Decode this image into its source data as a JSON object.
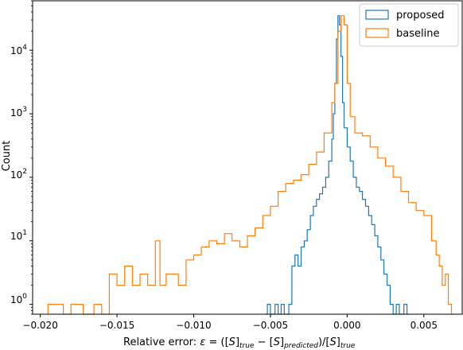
{
  "chart_data": {
    "type": "histogram",
    "xlabel": "Relative error: ε = ([S]true − [S]predicted)/[S]true",
    "xlabel_parts": {
      "prefix": "Relative error: ",
      "eps": "ε",
      "eq": " = ([",
      "S1": "S",
      "close1": "]",
      "sub_true": "true",
      "minus": " − [",
      "S2": "S",
      "close2": "]",
      "sub_pred": "predicted",
      "div": ")/[",
      "S3": "S",
      "close3": "]",
      "sub_true2": "true"
    },
    "ylabel": "Count",
    "yscale": "log",
    "xlim": [
      -0.0205,
      0.0075
    ],
    "ylim": [
      0.7,
      60000
    ],
    "x_ticks": [
      -0.02,
      -0.015,
      -0.01,
      -0.005,
      0.0,
      0.005
    ],
    "x_tick_labels": [
      "−0.020",
      "−0.015",
      "−0.010",
      "−0.005",
      "0.000",
      "0.005"
    ],
    "y_ticks": [
      1,
      10,
      100,
      1000,
      10000
    ],
    "y_tick_labels": {
      "t0": {
        "base": "10",
        "exp": "0"
      },
      "t1": {
        "base": "10",
        "exp": "1"
      },
      "t2": {
        "base": "10",
        "exp": "2"
      },
      "t3": {
        "base": "10",
        "exp": "3"
      },
      "t4": {
        "base": "10",
        "exp": "4"
      }
    },
    "legend_position": "top-right",
    "series": [
      {
        "name": "proposed",
        "color": "#1f77b4",
        "style": "step",
        "points": [
          [
            -0.0053,
            0.7
          ],
          [
            -0.0052,
            1
          ],
          [
            -0.005,
            0.7
          ],
          [
            -0.0047,
            1
          ],
          [
            -0.0045,
            0.7
          ],
          [
            -0.0043,
            1
          ],
          [
            -0.0041,
            0.7
          ],
          [
            -0.0038,
            1
          ],
          [
            -0.0036,
            4
          ],
          [
            -0.0034,
            6
          ],
          [
            -0.0032,
            4
          ],
          [
            -0.003,
            8
          ],
          [
            -0.0028,
            10
          ],
          [
            -0.0026,
            15
          ],
          [
            -0.0024,
            25
          ],
          [
            -0.0022,
            35
          ],
          [
            -0.002,
            45
          ],
          [
            -0.0018,
            55
          ],
          [
            -0.0016,
            70
          ],
          [
            -0.0014,
            100
          ],
          [
            -0.0012,
            180
          ],
          [
            -0.001,
            400
          ],
          [
            -0.0009,
            1000
          ],
          [
            -0.0008,
            3000
          ],
          [
            -0.0007,
            15000
          ],
          [
            -0.0006,
            35000
          ],
          [
            -0.0005,
            25000
          ],
          [
            -0.0004,
            8000
          ],
          [
            -0.0003,
            1500
          ],
          [
            -0.0002,
            600
          ],
          [
            0.0,
            300
          ],
          [
            0.0002,
            180
          ],
          [
            0.0004,
            100
          ],
          [
            0.0006,
            70
          ],
          [
            0.0008,
            60
          ],
          [
            0.001,
            45
          ],
          [
            0.0012,
            35
          ],
          [
            0.0014,
            25
          ],
          [
            0.0016,
            18
          ],
          [
            0.0018,
            12
          ],
          [
            0.002,
            8
          ],
          [
            0.0022,
            5
          ],
          [
            0.0024,
            3
          ],
          [
            0.0026,
            2
          ],
          [
            0.0028,
            1
          ],
          [
            0.003,
            0.7
          ],
          [
            0.0032,
            1
          ],
          [
            0.0034,
            0.7
          ],
          [
            0.0037,
            1
          ],
          [
            0.0039,
            0.7
          ]
        ]
      },
      {
        "name": "baseline",
        "color": "#ff7f0e",
        "style": "step",
        "points": [
          [
            -0.0195,
            1
          ],
          [
            -0.0185,
            0.7
          ],
          [
            -0.018,
            1
          ],
          [
            -0.0172,
            0.7
          ],
          [
            -0.0165,
            1
          ],
          [
            -0.016,
            0.7
          ],
          [
            -0.0155,
            3
          ],
          [
            -0.015,
            2
          ],
          [
            -0.0145,
            4
          ],
          [
            -0.014,
            2
          ],
          [
            -0.0135,
            3
          ],
          [
            -0.013,
            2
          ],
          [
            -0.0125,
            10
          ],
          [
            -0.0122,
            2
          ],
          [
            -0.0118,
            3
          ],
          [
            -0.011,
            2
          ],
          [
            -0.0105,
            5
          ],
          [
            -0.01,
            6
          ],
          [
            -0.0095,
            8
          ],
          [
            -0.009,
            10
          ],
          [
            -0.0085,
            9
          ],
          [
            -0.008,
            13
          ],
          [
            -0.0075,
            10
          ],
          [
            -0.007,
            8
          ],
          [
            -0.0065,
            12
          ],
          [
            -0.006,
            16
          ],
          [
            -0.0055,
            25
          ],
          [
            -0.005,
            35
          ],
          [
            -0.0045,
            60
          ],
          [
            -0.004,
            80
          ],
          [
            -0.0035,
            90
          ],
          [
            -0.003,
            110
          ],
          [
            -0.0025,
            160
          ],
          [
            -0.002,
            250
          ],
          [
            -0.0015,
            500
          ],
          [
            -0.001,
            1500
          ],
          [
            -0.0008,
            3000
          ],
          [
            -0.0006,
            20000
          ],
          [
            -0.0004,
            35000
          ],
          [
            -0.0002,
            25000
          ],
          [
            0.0,
            3000
          ],
          [
            0.0002,
            900
          ],
          [
            0.0005,
            500
          ],
          [
            0.001,
            450
          ],
          [
            0.0015,
            300
          ],
          [
            0.002,
            200
          ],
          [
            0.0025,
            150
          ],
          [
            0.003,
            100
          ],
          [
            0.0035,
            60
          ],
          [
            0.004,
            40
          ],
          [
            0.0045,
            30
          ],
          [
            0.005,
            25
          ],
          [
            0.0055,
            10
          ],
          [
            0.0058,
            6
          ],
          [
            0.006,
            4
          ],
          [
            0.0062,
            2
          ],
          [
            0.0064,
            3
          ],
          [
            0.0066,
            1
          ],
          [
            0.0068,
            0.7
          ]
        ]
      }
    ]
  }
}
